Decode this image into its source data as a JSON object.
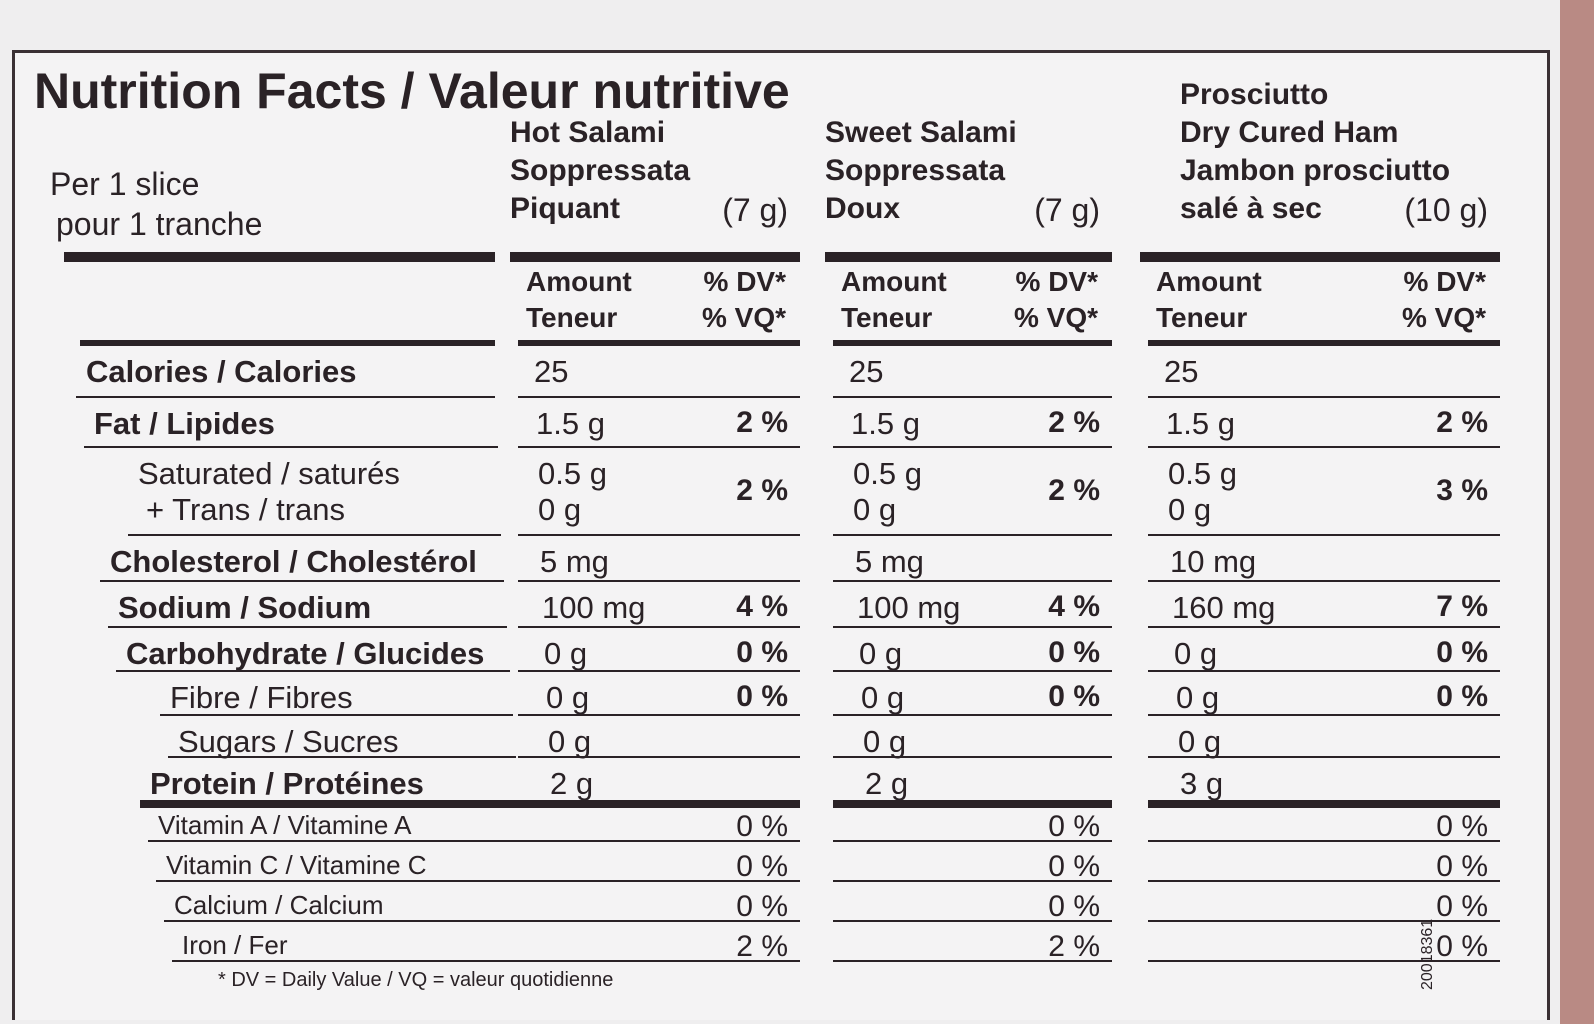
{
  "title": "Nutrition Facts / Valeur nutritive",
  "serving": [
    "Per 1 slice",
    "pour 1 tranche"
  ],
  "column_headers": {
    "amount": [
      "Amount",
      "Teneur"
    ],
    "dv": [
      "% DV*",
      "% VQ*"
    ]
  },
  "products": [
    {
      "name": [
        "Hot Salami",
        "Soppressata",
        "Piquant"
      ],
      "size": "(7 g)"
    },
    {
      "name": [
        "Sweet Salami",
        "Soppressata",
        "Doux"
      ],
      "size": "(7 g)"
    },
    {
      "name": [
        "Prosciutto",
        "Dry Cured Ham",
        "Jambon prosciutto",
        "salé à sec"
      ],
      "size": "(10 g)"
    }
  ],
  "rows": [
    {
      "label": [
        "Calories / Calories"
      ],
      "values": [
        {
          "amount": [
            "25"
          ]
        },
        {
          "amount": [
            "25"
          ]
        },
        {
          "amount": [
            "25"
          ]
        }
      ]
    },
    {
      "label": [
        "Fat / Lipides"
      ],
      "values": [
        {
          "amount": [
            "1.5 g"
          ],
          "dv": "2 %"
        },
        {
          "amount": [
            "1.5 g"
          ],
          "dv": "2 %"
        },
        {
          "amount": [
            "1.5 g"
          ],
          "dv": "2 %"
        }
      ]
    },
    {
      "label": [
        "Saturated / saturés",
        "+ Trans / trans"
      ],
      "values": [
        {
          "amount": [
            "0.5 g",
            "0 g"
          ],
          "dv": "2 %"
        },
        {
          "amount": [
            "0.5 g",
            "0 g"
          ],
          "dv": "2 %"
        },
        {
          "amount": [
            "0.5 g",
            "0 g"
          ],
          "dv": "3 %"
        }
      ]
    },
    {
      "label": [
        "Cholesterol / Cholestérol"
      ],
      "values": [
        {
          "amount": [
            "5 mg"
          ]
        },
        {
          "amount": [
            "5 mg"
          ]
        },
        {
          "amount": [
            "10 mg"
          ]
        }
      ]
    },
    {
      "label": [
        "Sodium / Sodium"
      ],
      "values": [
        {
          "amount": [
            "100 mg"
          ],
          "dv": "4 %"
        },
        {
          "amount": [
            "100 mg"
          ],
          "dv": "4 %"
        },
        {
          "amount": [
            "160 mg"
          ],
          "dv": "7 %"
        }
      ]
    },
    {
      "label": [
        "Carbohydrate / Glucides"
      ],
      "values": [
        {
          "amount": [
            "0 g"
          ],
          "dv": "0 %"
        },
        {
          "amount": [
            "0 g"
          ],
          "dv": "0 %"
        },
        {
          "amount": [
            "0 g"
          ],
          "dv": "0 %"
        }
      ]
    },
    {
      "label": [
        "Fibre / Fibres"
      ],
      "values": [
        {
          "amount": [
            "0 g"
          ],
          "dv": "0 %"
        },
        {
          "amount": [
            "0 g"
          ],
          "dv": "0 %"
        },
        {
          "amount": [
            "0 g"
          ],
          "dv": "0 %"
        }
      ]
    },
    {
      "label": [
        "Sugars / Sucres"
      ],
      "values": [
        {
          "amount": [
            "0 g"
          ]
        },
        {
          "amount": [
            "0 g"
          ]
        },
        {
          "amount": [
            "0 g"
          ]
        }
      ]
    },
    {
      "label": [
        "Protein / Protéines"
      ],
      "values": [
        {
          "amount": [
            "2 g"
          ]
        },
        {
          "amount": [
            "2 g"
          ]
        },
        {
          "amount": [
            "3 g"
          ]
        }
      ]
    },
    {
      "label": [
        "Vitamin A / Vitamine A"
      ],
      "values": [
        {
          "dv": "0 %"
        },
        {
          "dv": "0 %"
        },
        {
          "dv": "0 %"
        }
      ]
    },
    {
      "label": [
        "Vitamin C / Vitamine C"
      ],
      "values": [
        {
          "dv": "0 %"
        },
        {
          "dv": "0 %"
        },
        {
          "dv": "0 %"
        }
      ]
    },
    {
      "label": [
        "Calcium / Calcium"
      ],
      "values": [
        {
          "dv": "0 %"
        },
        {
          "dv": "0 %"
        },
        {
          "dv": "0 %"
        }
      ]
    },
    {
      "label": [
        "Iron / Fer"
      ],
      "values": [
        {
          "dv": "2 %"
        },
        {
          "dv": "2 %"
        },
        {
          "dv": "0 %"
        }
      ]
    }
  ],
  "footnote": "* DV = Daily Value / VQ = valeur quotidienne",
  "code": "20018361"
}
